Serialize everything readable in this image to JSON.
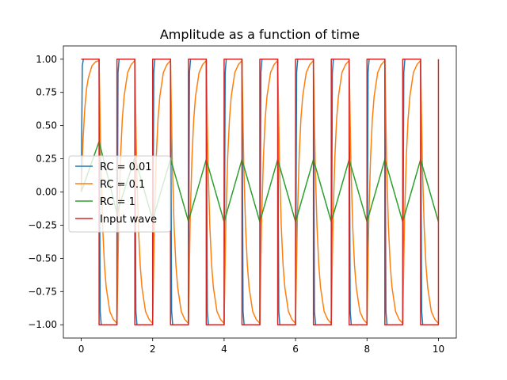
{
  "chart_data": {
    "type": "line",
    "title": "Amplitude as a function of time",
    "xlabel": "",
    "ylabel": "",
    "xlim": [
      -0.5,
      10.5
    ],
    "ylim": [
      -1.1,
      1.1
    ],
    "xticks": [
      0,
      2,
      4,
      6,
      8,
      10
    ],
    "xtick_labels": [
      "0",
      "2",
      "4",
      "6",
      "8",
      "10"
    ],
    "yticks": [
      1.0,
      0.75,
      0.5,
      0.25,
      0.0,
      -0.25,
      -0.5,
      -0.75,
      -1.0
    ],
    "ytick_labels": [
      "1.00",
      "0.75",
      "0.50",
      "0.25",
      "0.00",
      "−0.25",
      "−0.50",
      "−0.75",
      "−1.00"
    ],
    "grid": false,
    "legend_position": "center-left",
    "x": [
      0,
      0.05,
      0.1,
      0.15,
      0.2,
      0.25,
      0.3,
      0.35,
      0.4,
      0.45,
      0.5,
      0.55,
      0.6,
      0.65,
      0.7,
      0.75,
      0.8,
      0.85,
      0.9,
      0.95,
      1.0,
      1.5,
      2.0,
      2.5,
      3.0,
      3.5,
      4.0,
      4.5,
      5.0,
      5.5,
      6.0,
      6.5,
      7.0,
      7.5,
      8.0,
      8.5,
      9.0,
      9.5,
      10.0
    ],
    "series": [
      {
        "name": "RC = 0.01",
        "color": "#1f77b4",
        "x": [
          0,
          0.03,
          0.06,
          0.5,
          0.5,
          0.53,
          0.56,
          1.0,
          1.0,
          1.03,
          1.06,
          1.5,
          1.5,
          1.53,
          1.56,
          2.0,
          2.0,
          2.03,
          2.06,
          2.5,
          2.5,
          2.53,
          2.56,
          3.0,
          3.0,
          3.03,
          3.06,
          3.5,
          3.5,
          3.53,
          3.56,
          4.0,
          4.0,
          4.03,
          4.06,
          4.5,
          4.5,
          4.53,
          4.56,
          5.0,
          5.0,
          5.03,
          5.06,
          5.5,
          5.5,
          5.53,
          5.56,
          6.0,
          6.0,
          6.03,
          6.06,
          6.5,
          6.5,
          6.53,
          6.56,
          7.0,
          7.0,
          7.03,
          7.06,
          7.5,
          7.5,
          7.53,
          7.56,
          8.0,
          8.0,
          8.03,
          8.06,
          8.5,
          8.5,
          8.53,
          8.56,
          9.0,
          9.0,
          9.03,
          9.06,
          9.5,
          9.5,
          9.53,
          9.56,
          10.0
        ],
        "values": [
          0,
          0.95,
          1.0,
          1.0,
          1.0,
          -0.9,
          -1.0,
          -1.0,
          -1.0,
          0.9,
          1.0,
          1.0,
          1.0,
          -0.9,
          -1.0,
          -1.0,
          -1.0,
          0.9,
          1.0,
          1.0,
          1.0,
          -0.9,
          -1.0,
          -1.0,
          -1.0,
          0.9,
          1.0,
          1.0,
          1.0,
          -0.9,
          -1.0,
          -1.0,
          -1.0,
          0.9,
          1.0,
          1.0,
          1.0,
          -0.9,
          -1.0,
          -1.0,
          -1.0,
          0.9,
          1.0,
          1.0,
          1.0,
          -0.9,
          -1.0,
          -1.0,
          -1.0,
          0.9,
          1.0,
          1.0,
          1.0,
          -0.9,
          -1.0,
          -1.0,
          -1.0,
          0.9,
          1.0,
          1.0,
          1.0,
          -0.9,
          -1.0,
          -1.0,
          -1.0,
          0.9,
          1.0,
          1.0,
          1.0,
          -0.9,
          -1.0,
          -1.0,
          -1.0,
          0.9,
          1.0,
          1.0,
          1.0,
          -0.9,
          -1.0,
          -1.0
        ]
      },
      {
        "name": "RC = 0.1",
        "color": "#ff7f0e",
        "x": [
          0,
          0.05,
          0.1,
          0.15,
          0.2,
          0.3,
          0.4,
          0.5,
          0.55,
          0.6,
          0.65,
          0.7,
          0.8,
          0.9,
          1.0,
          1.05,
          1.1,
          1.15,
          1.2,
          1.3,
          1.4,
          1.5,
          1.55,
          1.6,
          1.65,
          1.7,
          1.8,
          1.9,
          2.0,
          2.05,
          2.1,
          2.15,
          2.2,
          2.3,
          2.4,
          2.5,
          2.55,
          2.6,
          2.65,
          2.7,
          2.8,
          2.9,
          3.0,
          3.05,
          3.1,
          3.15,
          3.2,
          3.3,
          3.4,
          3.5,
          3.55,
          3.6,
          3.65,
          3.7,
          3.8,
          3.9,
          4.0,
          4.05,
          4.1,
          4.15,
          4.2,
          4.3,
          4.4,
          4.5,
          4.55,
          4.6,
          4.65,
          4.7,
          4.8,
          4.9,
          5.0,
          5.05,
          5.1,
          5.15,
          5.2,
          5.3,
          5.4,
          5.5,
          5.55,
          5.6,
          5.65,
          5.7,
          5.8,
          5.9,
          6.0,
          6.05,
          6.1,
          6.15,
          6.2,
          6.3,
          6.4,
          6.5,
          6.55,
          6.6,
          6.65,
          6.7,
          6.8,
          6.9,
          7.0,
          7.05,
          7.1,
          7.15,
          7.2,
          7.3,
          7.4,
          7.5,
          7.55,
          7.6,
          7.65,
          7.7,
          7.8,
          7.9,
          8.0,
          8.05,
          8.1,
          8.15,
          8.2,
          8.3,
          8.4,
          8.5,
          8.55,
          8.6,
          8.65,
          8.7,
          8.8,
          8.9,
          9.0,
          9.05,
          9.1,
          9.15,
          9.2,
          9.3,
          9.4,
          9.5,
          9.55,
          9.6,
          9.65,
          9.7,
          9.8,
          9.9,
          10.0
        ],
        "values": [
          0,
          0.39,
          0.63,
          0.78,
          0.86,
          0.95,
          0.98,
          0.99,
          0.21,
          -0.26,
          -0.55,
          -0.72,
          -0.9,
          -0.96,
          -0.99,
          -0.21,
          0.26,
          0.55,
          0.72,
          0.9,
          0.96,
          0.99,
          0.21,
          -0.26,
          -0.55,
          -0.72,
          -0.9,
          -0.96,
          -0.99,
          -0.21,
          0.26,
          0.55,
          0.72,
          0.9,
          0.96,
          0.99,
          0.21,
          -0.26,
          -0.55,
          -0.72,
          -0.9,
          -0.96,
          -0.99,
          -0.21,
          0.26,
          0.55,
          0.72,
          0.9,
          0.96,
          0.99,
          0.21,
          -0.26,
          -0.55,
          -0.72,
          -0.9,
          -0.96,
          -0.99,
          -0.21,
          0.26,
          0.55,
          0.72,
          0.9,
          0.96,
          0.99,
          0.21,
          -0.26,
          -0.55,
          -0.72,
          -0.9,
          -0.96,
          -0.99,
          -0.21,
          0.26,
          0.55,
          0.72,
          0.9,
          0.96,
          0.99,
          0.21,
          -0.26,
          -0.55,
          -0.72,
          -0.9,
          -0.96,
          -0.99,
          -0.21,
          0.26,
          0.55,
          0.72,
          0.9,
          0.96,
          0.99,
          0.21,
          -0.26,
          -0.55,
          -0.72,
          -0.9,
          -0.96,
          -0.99,
          -0.21,
          0.26,
          0.55,
          0.72,
          0.9,
          0.96,
          0.99,
          0.21,
          -0.26,
          -0.55,
          -0.72,
          -0.9,
          -0.96,
          -0.99,
          -0.21,
          0.26,
          0.55,
          0.72,
          0.9,
          0.96,
          0.99,
          0.21,
          -0.26,
          -0.55,
          -0.72,
          -0.9,
          -0.96,
          -0.99,
          -0.21,
          0.26,
          0.55,
          0.72,
          0.9,
          0.96,
          0.99,
          0.21,
          -0.26,
          -0.55,
          -0.72,
          -0.9,
          -0.96,
          -0.99
        ]
      },
      {
        "name": "RC = 1",
        "color": "#2ca02c",
        "x": [
          0,
          0.5,
          1.0,
          1.5,
          2.0,
          2.5,
          3.0,
          3.5,
          4.0,
          4.5,
          5.0,
          5.5,
          6.0,
          6.5,
          7.0,
          7.5,
          8.0,
          8.5,
          9.0,
          9.5,
          10.0
        ],
        "values": [
          0,
          0.38,
          -0.16,
          0.26,
          -0.21,
          0.25,
          -0.22,
          0.245,
          -0.225,
          0.245,
          -0.225,
          0.245,
          -0.225,
          0.245,
          -0.225,
          0.245,
          -0.225,
          0.245,
          -0.225,
          0.245,
          -0.225
        ]
      },
      {
        "name": "Input wave",
        "color": "#d62728",
        "x": [
          0,
          0.5,
          0.5,
          1.0,
          1.0,
          1.5,
          1.5,
          2.0,
          2.0,
          2.5,
          2.5,
          3.0,
          3.0,
          3.5,
          3.5,
          4.0,
          4.0,
          4.5,
          4.5,
          5.0,
          5.0,
          5.5,
          5.5,
          6.0,
          6.0,
          6.5,
          6.5,
          7.0,
          7.0,
          7.5,
          7.5,
          8.0,
          8.0,
          8.5,
          8.5,
          9.0,
          9.0,
          9.5,
          9.5,
          10.0,
          10.0
        ],
        "values": [
          1,
          1,
          -1,
          -1,
          1,
          1,
          -1,
          -1,
          1,
          1,
          -1,
          -1,
          1,
          1,
          -1,
          -1,
          1,
          1,
          -1,
          -1,
          1,
          1,
          -1,
          -1,
          1,
          1,
          -1,
          -1,
          1,
          1,
          -1,
          -1,
          1,
          1,
          -1,
          -1,
          1,
          1,
          -1,
          -1,
          1
        ]
      }
    ]
  }
}
